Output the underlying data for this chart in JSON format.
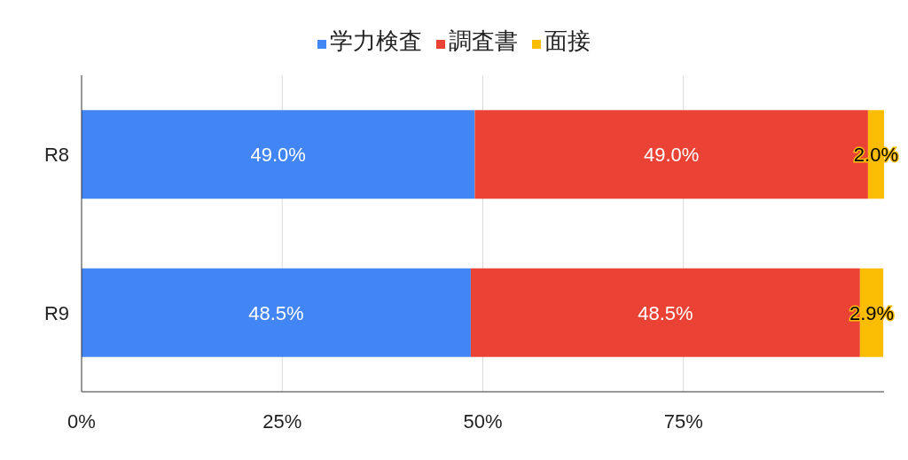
{
  "chart_data": {
    "type": "bar",
    "orientation": "horizontal",
    "stacked": true,
    "categories": [
      "R8",
      "R9"
    ],
    "series": [
      {
        "name": "学力検査",
        "color": "#4285f4",
        "values": [
          49.0,
          48.5
        ],
        "value_labels": [
          "49.0%",
          "48.5%"
        ]
      },
      {
        "name": "調査書",
        "color": "#ea4335",
        "values": [
          49.0,
          48.5
        ],
        "value_labels": [
          "49.0%",
          "48.5%"
        ]
      },
      {
        "name": "面接",
        "color": "#fbbc04",
        "values": [
          2.0,
          2.9
        ],
        "value_labels": [
          "2.0%",
          "2.9%"
        ]
      }
    ],
    "xlim": [
      0,
      100
    ],
    "xticks": [
      {
        "value": 0,
        "label": "0%"
      },
      {
        "value": 25,
        "label": "25%"
      },
      {
        "value": 50,
        "label": "50%"
      },
      {
        "value": 75,
        "label": "75%"
      }
    ],
    "grid": "x",
    "legend": "top"
  }
}
